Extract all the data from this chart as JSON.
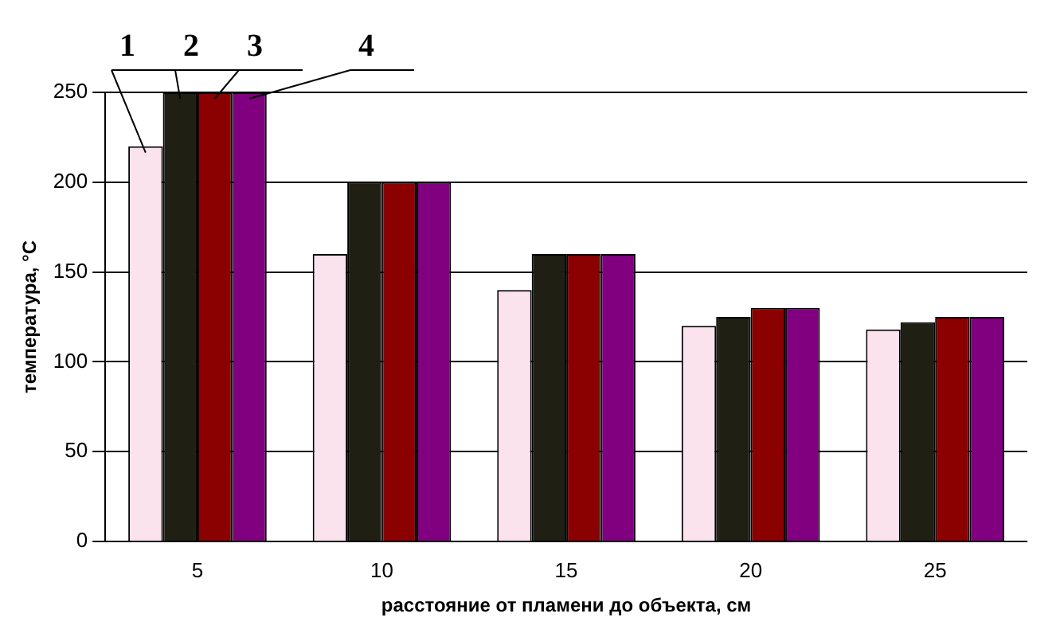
{
  "chart_data": {
    "type": "bar",
    "xlabel": "расстояние от пламени до объекта, см",
    "ylabel": "температура, °C",
    "categories": [
      "5",
      "10",
      "15",
      "20",
      "25"
    ],
    "series": [
      {
        "name": "1",
        "color": "#fbe3ee",
        "values": [
          220,
          160,
          140,
          120,
          118
        ]
      },
      {
        "name": "2",
        "color": "#1f1f14",
        "values": [
          250,
          200,
          160,
          125,
          122
        ]
      },
      {
        "name": "3",
        "color": "#8b0000",
        "values": [
          250,
          200,
          160,
          130,
          125
        ]
      },
      {
        "name": "4",
        "color": "#800080",
        "values": [
          250,
          200,
          160,
          130,
          125
        ]
      }
    ],
    "ylim": [
      0,
      250
    ],
    "yticks": [
      0,
      50,
      100,
      150,
      200,
      250
    ],
    "grid": "y",
    "legend": false
  }
}
